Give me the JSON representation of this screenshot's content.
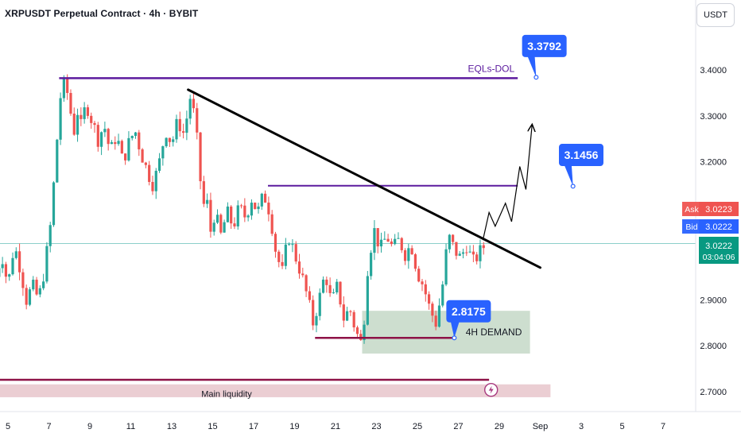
{
  "header": {
    "title": "XRPUSDT Perpetual Contract · 4h · BYBIT",
    "currency": "USDT"
  },
  "colors": {
    "up": "#26a69a",
    "down": "#ef5350",
    "purple": "#5b1a9e",
    "maroon": "#8e1247",
    "callout": "#2962ff",
    "demand_zone": "#bcd3bf",
    "liquidity_zone": "#e8c6cb",
    "current_line": "#26a69a",
    "ask": "#ef5350",
    "bid": "#2962ff",
    "price_badge": "#089981"
  },
  "chart_data": {
    "type": "candlestick",
    "ylim": [
      2.655,
      3.475
    ],
    "xlim": [
      4.4,
      8.8
    ],
    "x_unit": "day",
    "x_ticks": [
      {
        "label": "5",
        "day": 5
      },
      {
        "label": "7",
        "day": 7
      },
      {
        "label": "9",
        "day": 9
      },
      {
        "label": "11",
        "day": 11
      },
      {
        "label": "13",
        "day": 13
      },
      {
        "label": "15",
        "day": 15
      },
      {
        "label": "17",
        "day": 17
      },
      {
        "label": "19",
        "day": 19
      },
      {
        "label": "21",
        "day": 21
      },
      {
        "label": "23",
        "day": 23
      },
      {
        "label": "25",
        "day": 25
      },
      {
        "label": "27",
        "day": 27
      },
      {
        "label": "29",
        "day": 29
      },
      {
        "label": "Sep",
        "day": 31
      },
      {
        "label": "3",
        "day": 33
      },
      {
        "label": "5",
        "day": 35
      },
      {
        "label": "7",
        "day": 37
      }
    ],
    "y_ticks": [
      "3.4000",
      "3.3000",
      "3.2000",
      "2.9000",
      "2.8000",
      "2.7000"
    ],
    "current_price": "3.0222",
    "countdown": "03:04:06",
    "ask": {
      "label": "Ask",
      "value": "3.0223"
    },
    "bid": {
      "label": "Bid",
      "value": "3.0222"
    },
    "grid": false,
    "series": [
      {
        "t": 4.4,
        "v": 2.95
      },
      {
        "t": 4.7,
        "v": 3.0
      },
      {
        "t": 5.0,
        "v": 2.93
      },
      {
        "t": 5.3,
        "v": 3.02
      },
      {
        "t": 5.6,
        "v": 2.97
      },
      {
        "t": 5.9,
        "v": 2.9
      },
      {
        "t": 6.2,
        "v": 2.93
      },
      {
        "t": 6.5,
        "v": 2.9
      },
      {
        "t": 6.8,
        "v": 2.97
      },
      {
        "t": 7.1,
        "v": 3.07
      },
      {
        "t": 7.4,
        "v": 3.25
      },
      {
        "t": 7.6,
        "v": 3.36
      },
      {
        "t": 7.8,
        "v": 3.37
      },
      {
        "t": 8.0,
        "v": 3.33
      },
      {
        "t": 8.2,
        "v": 3.26
      },
      {
        "t": 8.4,
        "v": 3.31
      },
      {
        "t": 8.6,
        "v": 3.27
      },
      {
        "t": 8.8,
        "v": 3.33
      },
      {
        "t": 9.1,
        "v": 3.29
      },
      {
        "t": 9.4,
        "v": 3.25
      },
      {
        "t": 9.7,
        "v": 3.28
      },
      {
        "t": 10.0,
        "v": 3.22
      },
      {
        "t": 10.3,
        "v": 3.26
      },
      {
        "t": 10.6,
        "v": 3.2
      },
      {
        "t": 10.9,
        "v": 3.24
      },
      {
        "t": 11.2,
        "v": 3.27
      },
      {
        "t": 11.5,
        "v": 3.22
      },
      {
        "t": 11.8,
        "v": 3.18
      },
      {
        "t": 12.1,
        "v": 3.15
      },
      {
        "t": 12.4,
        "v": 3.2
      },
      {
        "t": 12.7,
        "v": 3.27
      },
      {
        "t": 13.0,
        "v": 3.24
      },
      {
        "t": 13.3,
        "v": 3.29
      },
      {
        "t": 13.6,
        "v": 3.26
      },
      {
        "t": 13.9,
        "v": 3.34
      },
      {
        "t": 14.1,
        "v": 3.3
      },
      {
        "t": 14.3,
        "v": 3.22
      },
      {
        "t": 14.5,
        "v": 3.1
      },
      {
        "t": 14.7,
        "v": 3.12
      },
      {
        "t": 14.9,
        "v": 3.05
      },
      {
        "t": 15.1,
        "v": 3.09
      },
      {
        "t": 15.4,
        "v": 3.04
      },
      {
        "t": 15.7,
        "v": 3.09
      },
      {
        "t": 16.0,
        "v": 3.06
      },
      {
        "t": 16.3,
        "v": 3.1
      },
      {
        "t": 16.6,
        "v": 3.08
      },
      {
        "t": 16.9,
        "v": 3.12
      },
      {
        "t": 17.2,
        "v": 3.09
      },
      {
        "t": 17.5,
        "v": 3.13
      },
      {
        "t": 17.8,
        "v": 3.09
      },
      {
        "t": 18.1,
        "v": 3.0
      },
      {
        "t": 18.4,
        "v": 2.96
      },
      {
        "t": 18.7,
        "v": 3.04
      },
      {
        "t": 19.0,
        "v": 3.0
      },
      {
        "t": 19.3,
        "v": 2.96
      },
      {
        "t": 19.6,
        "v": 2.91
      },
      {
        "t": 19.9,
        "v": 2.85
      },
      {
        "t": 20.2,
        "v": 2.9
      },
      {
        "t": 20.5,
        "v": 2.96
      },
      {
        "t": 20.8,
        "v": 2.89
      },
      {
        "t": 21.1,
        "v": 2.93
      },
      {
        "t": 21.4,
        "v": 2.86
      },
      {
        "t": 21.7,
        "v": 2.88
      },
      {
        "t": 22.0,
        "v": 2.83
      },
      {
        "t": 22.3,
        "v": 2.8
      },
      {
        "t": 22.6,
        "v": 2.99
      },
      {
        "t": 22.9,
        "v": 3.05
      },
      {
        "t": 23.2,
        "v": 3.01
      },
      {
        "t": 23.5,
        "v": 3.04
      },
      {
        "t": 23.8,
        "v": 3.01
      },
      {
        "t": 24.1,
        "v": 3.03
      },
      {
        "t": 24.4,
        "v": 3.0
      },
      {
        "t": 24.7,
        "v": 3.02
      },
      {
        "t": 25.0,
        "v": 2.96
      },
      {
        "t": 25.3,
        "v": 2.93
      },
      {
        "t": 25.6,
        "v": 2.88
      },
      {
        "t": 25.9,
        "v": 2.85
      },
      {
        "t": 26.2,
        "v": 2.92
      },
      {
        "t": 26.5,
        "v": 3.04
      },
      {
        "t": 26.8,
        "v": 3.01
      },
      {
        "t": 27.1,
        "v": 2.99
      },
      {
        "t": 27.4,
        "v": 3.02
      },
      {
        "t": 27.7,
        "v": 2.98
      },
      {
        "t": 28.0,
        "v": 3.0
      },
      {
        "t": 28.3,
        "v": 3.02
      }
    ],
    "annotations": {
      "eqls_dol": {
        "label": "EQLs-DOL",
        "price": 3.382,
        "day_start": 7.5,
        "day_end": 29.9
      },
      "purple_level": {
        "price": 3.148,
        "day_start": 17.7,
        "day_end": 29.9
      },
      "trendline": {
        "day_start": 13.8,
        "price_start": 3.357,
        "day_end": 31.0,
        "price_end": 2.97
      },
      "demand_zone": {
        "label": "4H DEMAND",
        "top": 2.876,
        "bottom": 2.783,
        "day_start": 22.3,
        "day_end": 30.5
      },
      "demand_line": {
        "price": 2.817,
        "day_start": 20.0,
        "day_end": 26.8
      },
      "liquidity_line": {
        "price": 2.726,
        "day_start": 4.4,
        "day_end": 28.5
      },
      "liquidity_zone": {
        "label": "Main liquidity",
        "top": 2.716,
        "bottom": 2.688,
        "day_start": 4.4,
        "day_end": 31.5
      },
      "projection": [
        {
          "t": 28.2,
          "v": 3.03
        },
        {
          "t": 28.5,
          "v": 3.09
        },
        {
          "t": 28.8,
          "v": 3.06
        },
        {
          "t": 29.3,
          "v": 3.11
        },
        {
          "t": 29.6,
          "v": 3.07
        },
        {
          "t": 30.0,
          "v": 3.19
        },
        {
          "t": 30.3,
          "v": 3.14
        },
        {
          "t": 30.6,
          "v": 3.28
        }
      ],
      "callouts": [
        {
          "label": "3.3792",
          "day": 31.2,
          "price": 3.452,
          "anchor_day": 30.8,
          "anchor_price": 3.384
        },
        {
          "label": "3.1456",
          "day": 33.0,
          "price": 3.215,
          "anchor_day": 32.6,
          "anchor_price": 3.147
        },
        {
          "label": "2.8175",
          "day": 27.5,
          "price": 2.875,
          "anchor_day": 26.8,
          "anchor_price": 2.817
        }
      ]
    }
  }
}
